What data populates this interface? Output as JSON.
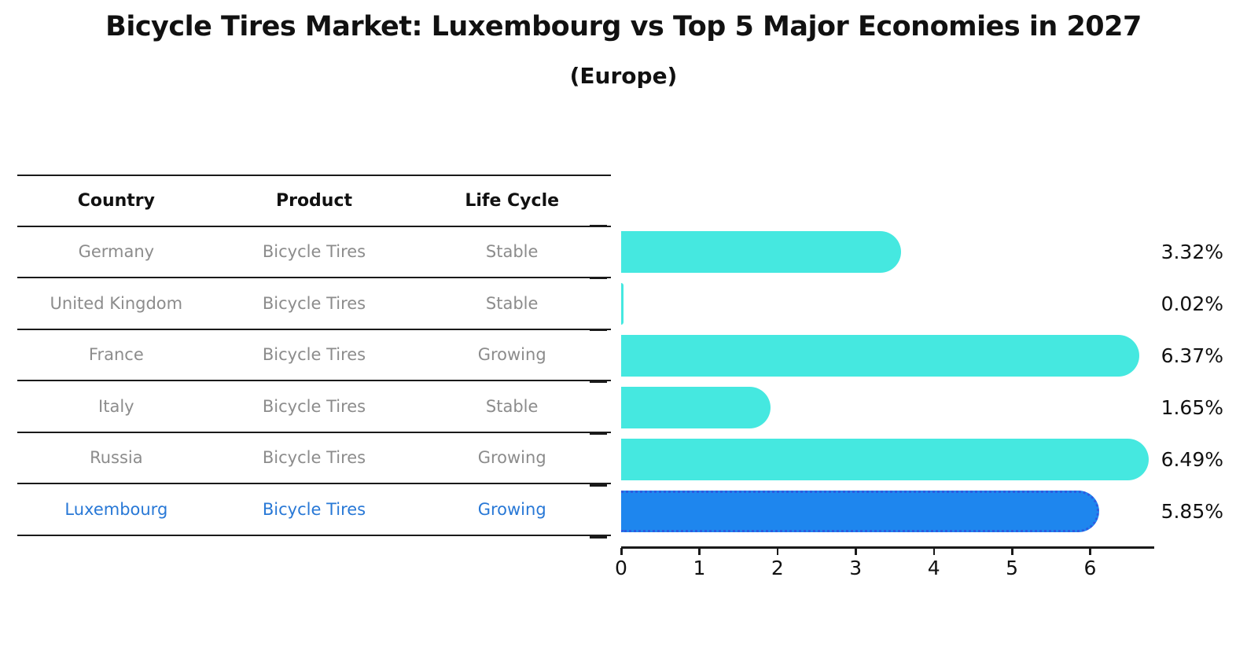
{
  "header": {
    "title": "Bicycle Tires Market: Luxembourg vs Top 5 Major Economies in 2027",
    "subtitle": "(Europe)"
  },
  "table": {
    "headers": [
      "Country",
      "Product",
      "Life Cycle"
    ],
    "rows": [
      {
        "country": "Germany",
        "product": "Bicycle Tires",
        "life_cycle": "Stable",
        "highlighted": false
      },
      {
        "country": "United Kingdom",
        "product": "Bicycle Tires",
        "life_cycle": "Stable",
        "highlighted": false
      },
      {
        "country": "France",
        "product": "Bicycle Tires",
        "life_cycle": "Growing",
        "highlighted": false
      },
      {
        "country": "Italy",
        "product": "Bicycle Tires",
        "life_cycle": "Stable",
        "highlighted": false
      },
      {
        "country": "Russia",
        "product": "Bicycle Tires",
        "life_cycle": "Growing",
        "highlighted": false
      },
      {
        "country": "Luxembourg",
        "product": "Bicycle Tires",
        "life_cycle": "Growing",
        "highlighted": true
      }
    ]
  },
  "chart_data": {
    "type": "bar",
    "orientation": "horizontal",
    "title": "Bicycle Tires Market: Luxembourg vs Top 5 Major Economies in 2027",
    "subtitle": "(Europe)",
    "categories": [
      "Germany",
      "United Kingdom",
      "France",
      "Italy",
      "Russia",
      "Luxembourg"
    ],
    "values": [
      3.32,
      0.02,
      6.37,
      1.65,
      6.49,
      5.85
    ],
    "value_labels": [
      "3.32%",
      "0.02%",
      "6.37%",
      "1.65%",
      "6.49%",
      "5.85%"
    ],
    "xlim": [
      0,
      6.8
    ],
    "xticks": [
      0,
      1,
      2,
      3,
      4,
      5,
      6
    ],
    "grid": false,
    "legend": null,
    "highlight_index": 5,
    "colors": {
      "bar_default": "#45e8e0",
      "bar_highlight": "#1e86ee",
      "bar_highlight_edge": "#2d5be0",
      "highlight_text": "#2878d6",
      "table_text": "#8c8c8c",
      "heading_text": "#111111",
      "axis": "#1a1a1a"
    }
  }
}
